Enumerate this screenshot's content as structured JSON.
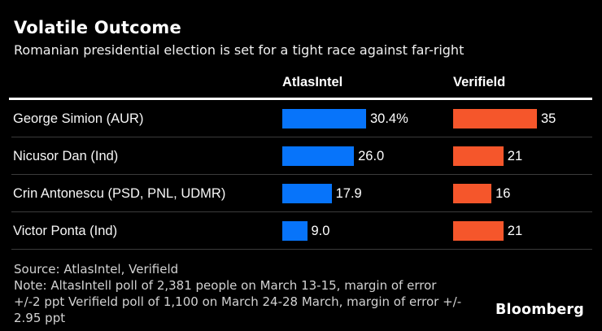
{
  "chart_data": {
    "type": "bar",
    "orientation": "horizontal",
    "title": "Volatile Outcome",
    "subtitle": "Romanian presidential election is set for a tight race against far-right",
    "categories": [
      "George Simion (AUR)",
      "Nicusor Dan (Ind)",
      "Crin Antonescu (PSD, PNL, UDMR)",
      "Victor Ponta (Ind)"
    ],
    "series": [
      {
        "name": "AtlasIntel",
        "color": "#0774fa",
        "values": [
          30.4,
          26.0,
          17.9,
          9.0
        ],
        "value_labels": [
          "30.4%",
          "26.0",
          "17.9",
          "9.0"
        ],
        "axis_max": 30.4
      },
      {
        "name": "Verifield",
        "color": "#f5562b",
        "values": [
          35,
          21,
          16,
          21
        ],
        "value_labels": [
          "35",
          "21",
          "16",
          "21"
        ],
        "axis_max": 35
      }
    ],
    "legend_position": "column-headers",
    "grid": false,
    "value_label_position": "right-of-bar",
    "bars_scaled_independently_per_column": true
  },
  "colors": {
    "background": "#000000",
    "title_text": "#ffffff",
    "atlas_bar": "#0774fa",
    "verifield_bar": "#f5562b",
    "separator": "#3b3b3b",
    "header_rule": "#ffffff",
    "footer_text": "#d2d2d2"
  },
  "footer": {
    "source": "Source: AtlasIntel, Verifield",
    "note_lines": [
      "Note: AltasIntell poll of 2,381 people on March 13-15, margin of error",
      "+/-2 ppt Verifield poll of 1,100 on March 24-28 March, margin of error +/-",
      "2.95 ppt"
    ],
    "brand": "Bloomberg"
  }
}
